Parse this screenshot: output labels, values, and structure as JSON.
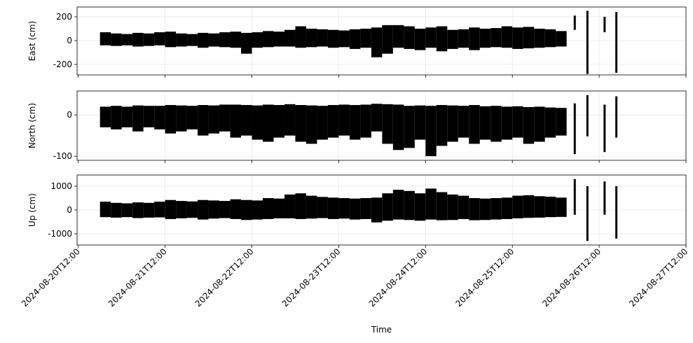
{
  "chart_data": [
    {
      "type": "range",
      "ylabel": "East (cm)",
      "grid": true,
      "color": "#000000",
      "xlim": [
        "2024-08-20T11:40",
        "2024-08-27T12:00"
      ],
      "xticks": [
        "2024-08-20T12:00",
        "2024-08-21T12:00",
        "2024-08-22T12:00",
        "2024-08-23T12:00",
        "2024-08-24T12:00",
        "2024-08-25T12:00",
        "2024-08-26T12:00",
        "2024-08-27T12:00"
      ],
      "ylim": [
        -288,
        282
      ],
      "yticks": [
        -200,
        0,
        200
      ],
      "x": [
        "2024-08-20T18:00",
        "2024-08-20T21:00",
        "2024-08-21T00:00",
        "2024-08-21T03:00",
        "2024-08-21T06:00",
        "2024-08-21T09:00",
        "2024-08-21T12:00",
        "2024-08-21T15:00",
        "2024-08-21T18:00",
        "2024-08-21T21:00",
        "2024-08-22T00:00",
        "2024-08-22T03:00",
        "2024-08-22T06:00",
        "2024-08-22T09:00",
        "2024-08-22T12:00",
        "2024-08-22T15:00",
        "2024-08-22T18:00",
        "2024-08-22T21:00",
        "2024-08-23T00:00",
        "2024-08-23T03:00",
        "2024-08-23T06:00",
        "2024-08-23T09:00",
        "2024-08-23T12:00",
        "2024-08-23T15:00",
        "2024-08-23T18:00",
        "2024-08-23T21:00",
        "2024-08-24T00:00",
        "2024-08-24T03:00",
        "2024-08-24T06:00",
        "2024-08-24T09:00",
        "2024-08-24T12:00",
        "2024-08-24T15:00",
        "2024-08-24T18:00",
        "2024-08-24T21:00",
        "2024-08-25T00:00",
        "2024-08-25T03:00",
        "2024-08-25T06:00",
        "2024-08-25T09:00",
        "2024-08-25T12:00",
        "2024-08-25T15:00",
        "2024-08-25T18:00",
        "2024-08-25T21:00",
        "2024-08-26T00:00",
        "2024-08-26T05:15",
        "2024-08-26T08:45",
        "2024-08-26T13:30",
        "2024-08-26T16:45"
      ],
      "low": [
        -40,
        -45,
        -40,
        -50,
        -45,
        -40,
        -55,
        -50,
        -45,
        -60,
        -50,
        -55,
        -60,
        -110,
        -60,
        -55,
        -50,
        -50,
        -60,
        -55,
        -50,
        -60,
        -55,
        -70,
        -60,
        -140,
        -110,
        -60,
        -70,
        -80,
        -60,
        -90,
        -70,
        -60,
        -80,
        -60,
        -55,
        -60,
        -70,
        -65,
        -60,
        -55,
        -50,
        90,
        -280,
        70,
        -270
      ],
      "high": [
        70,
        60,
        55,
        65,
        60,
        70,
        75,
        60,
        55,
        65,
        60,
        70,
        75,
        65,
        70,
        80,
        75,
        90,
        120,
        100,
        95,
        90,
        85,
        95,
        100,
        110,
        130,
        130,
        120,
        100,
        110,
        120,
        90,
        95,
        110,
        100,
        105,
        120,
        110,
        115,
        100,
        95,
        80,
        210,
        250,
        200,
        240
      ]
    },
    {
      "type": "range",
      "ylabel": "North (cm)",
      "grid": true,
      "color": "#000000",
      "xlim": [
        "2024-08-20T11:40",
        "2024-08-27T12:00"
      ],
      "xticks": [
        "2024-08-20T12:00",
        "2024-08-21T12:00",
        "2024-08-22T12:00",
        "2024-08-23T12:00",
        "2024-08-24T12:00",
        "2024-08-25T12:00",
        "2024-08-26T12:00",
        "2024-08-27T12:00"
      ],
      "ylim": [
        -110,
        58
      ],
      "yticks": [
        -100,
        0
      ],
      "x": [
        "2024-08-20T18:00",
        "2024-08-20T21:00",
        "2024-08-21T00:00",
        "2024-08-21T03:00",
        "2024-08-21T06:00",
        "2024-08-21T09:00",
        "2024-08-21T12:00",
        "2024-08-21T15:00",
        "2024-08-21T18:00",
        "2024-08-21T21:00",
        "2024-08-22T00:00",
        "2024-08-22T03:00",
        "2024-08-22T06:00",
        "2024-08-22T09:00",
        "2024-08-22T12:00",
        "2024-08-22T15:00",
        "2024-08-22T18:00",
        "2024-08-22T21:00",
        "2024-08-23T00:00",
        "2024-08-23T03:00",
        "2024-08-23T06:00",
        "2024-08-23T09:00",
        "2024-08-23T12:00",
        "2024-08-23T15:00",
        "2024-08-23T18:00",
        "2024-08-23T21:00",
        "2024-08-24T00:00",
        "2024-08-24T03:00",
        "2024-08-24T06:00",
        "2024-08-24T09:00",
        "2024-08-24T12:00",
        "2024-08-24T15:00",
        "2024-08-24T18:00",
        "2024-08-24T21:00",
        "2024-08-25T00:00",
        "2024-08-25T03:00",
        "2024-08-25T06:00",
        "2024-08-25T09:00",
        "2024-08-25T12:00",
        "2024-08-25T15:00",
        "2024-08-25T18:00",
        "2024-08-25T21:00",
        "2024-08-26T00:00",
        "2024-08-26T05:15",
        "2024-08-26T08:45",
        "2024-08-26T13:30",
        "2024-08-26T16:45"
      ],
      "low": [
        -30,
        -35,
        -30,
        -40,
        -30,
        -35,
        -45,
        -40,
        -35,
        -50,
        -45,
        -40,
        -55,
        -50,
        -60,
        -65,
        -55,
        -50,
        -65,
        -70,
        -60,
        -55,
        -50,
        -60,
        -55,
        -40,
        -70,
        -85,
        -80,
        -60,
        -100,
        -75,
        -65,
        -55,
        -70,
        -60,
        -65,
        -60,
        -55,
        -70,
        -65,
        -55,
        -50,
        -95,
        -52,
        -90,
        -55
      ],
      "high": [
        20,
        22,
        20,
        23,
        22,
        22,
        24,
        23,
        22,
        24,
        23,
        25,
        25,
        24,
        23,
        25,
        24,
        26,
        24,
        23,
        22,
        24,
        25,
        24,
        25,
        27,
        26,
        25,
        22,
        23,
        22,
        24,
        23,
        22,
        24,
        21,
        22,
        20,
        21,
        19,
        20,
        18,
        17,
        28,
        48,
        25,
        45
      ]
    },
    {
      "type": "range",
      "ylabel": "Up (cm)",
      "xlabel": "Time",
      "grid": true,
      "color": "#000000",
      "xlim": [
        "2024-08-20T11:40",
        "2024-08-27T12:00"
      ],
      "xticks": [
        "2024-08-20T12:00",
        "2024-08-21T12:00",
        "2024-08-22T12:00",
        "2024-08-23T12:00",
        "2024-08-24T12:00",
        "2024-08-25T12:00",
        "2024-08-26T12:00",
        "2024-08-27T12:00"
      ],
      "ylim": [
        -1470,
        1470
      ],
      "yticks": [
        -1000,
        0,
        1000
      ],
      "x": [
        "2024-08-20T18:00",
        "2024-08-20T21:00",
        "2024-08-21T00:00",
        "2024-08-21T03:00",
        "2024-08-21T06:00",
        "2024-08-21T09:00",
        "2024-08-21T12:00",
        "2024-08-21T15:00",
        "2024-08-21T18:00",
        "2024-08-21T21:00",
        "2024-08-22T00:00",
        "2024-08-22T03:00",
        "2024-08-22T06:00",
        "2024-08-22T09:00",
        "2024-08-22T12:00",
        "2024-08-22T15:00",
        "2024-08-22T18:00",
        "2024-08-22T21:00",
        "2024-08-23T00:00",
        "2024-08-23T03:00",
        "2024-08-23T06:00",
        "2024-08-23T09:00",
        "2024-08-23T12:00",
        "2024-08-23T15:00",
        "2024-08-23T18:00",
        "2024-08-23T21:00",
        "2024-08-24T00:00",
        "2024-08-24T03:00",
        "2024-08-24T06:00",
        "2024-08-24T09:00",
        "2024-08-24T12:00",
        "2024-08-24T15:00",
        "2024-08-24T18:00",
        "2024-08-24T21:00",
        "2024-08-25T00:00",
        "2024-08-25T03:00",
        "2024-08-25T06:00",
        "2024-08-25T09:00",
        "2024-08-25T12:00",
        "2024-08-25T15:00",
        "2024-08-25T18:00",
        "2024-08-25T21:00",
        "2024-08-26T00:00",
        "2024-08-26T05:15",
        "2024-08-26T08:45",
        "2024-08-26T13:30",
        "2024-08-26T16:45"
      ],
      "low": [
        -300,
        -320,
        -300,
        -340,
        -320,
        -310,
        -380,
        -350,
        -330,
        -400,
        -360,
        -340,
        -380,
        -420,
        -400,
        -380,
        -350,
        -350,
        -380,
        -360,
        -340,
        -380,
        -360,
        -400,
        -380,
        -520,
        -450,
        -400,
        -420,
        -450,
        -400,
        -430,
        -420,
        -380,
        -430,
        -420,
        -400,
        -380,
        -350,
        -330,
        -320,
        -300,
        -290,
        -200,
        -1300,
        -200,
        -1200
      ],
      "high": [
        350,
        300,
        280,
        320,
        300,
        350,
        420,
        380,
        360,
        420,
        400,
        380,
        450,
        420,
        400,
        500,
        480,
        650,
        700,
        600,
        550,
        520,
        500,
        480,
        500,
        520,
        700,
        850,
        800,
        700,
        900,
        750,
        650,
        600,
        500,
        480,
        500,
        520,
        600,
        620,
        580,
        560,
        520,
        1300,
        1000,
        1200,
        1000
      ]
    }
  ]
}
